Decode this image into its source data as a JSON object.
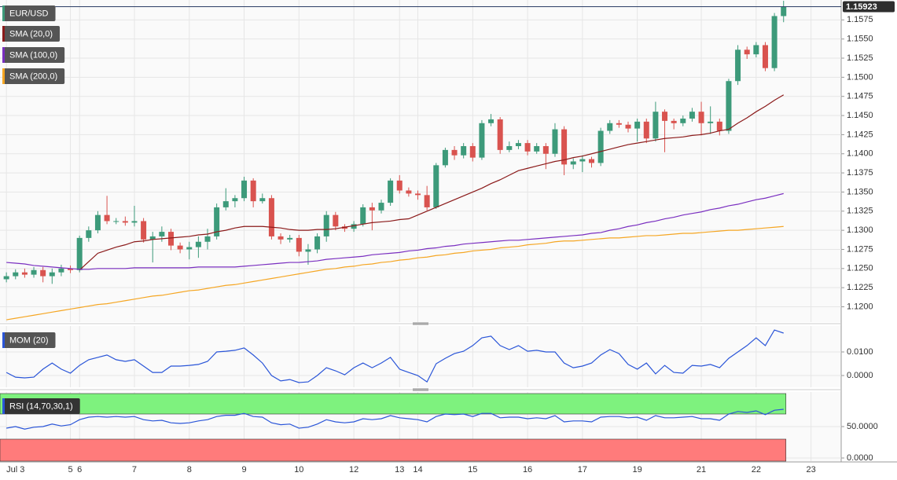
{
  "chart_data": [
    {
      "type": "candlestick",
      "title": "EUR/USD",
      "up_color": "#3d9a7a",
      "down_color": "#d9534f",
      "grid": true,
      "xlim": [
        -0.7,
        91.3
      ],
      "xticks": [
        {
          "value": 0,
          "label": "Jul 3"
        },
        {
          "value": 7,
          "label": "5"
        },
        {
          "value": 8,
          "label": "6"
        },
        {
          "value": 14,
          "label": "7"
        },
        {
          "value": 20,
          "label": "8"
        },
        {
          "value": 26,
          "label": "9"
        },
        {
          "value": 32,
          "label": "10"
        },
        {
          "value": 38,
          "label": "12"
        },
        {
          "value": 43,
          "label": "13"
        },
        {
          "value": 45,
          "label": "14"
        },
        {
          "value": 51,
          "label": "15"
        },
        {
          "value": 57,
          "label": "16"
        },
        {
          "value": 63,
          "label": "17"
        },
        {
          "value": 69,
          "label": "19"
        },
        {
          "value": 76,
          "label": "21"
        },
        {
          "value": 82,
          "label": "22"
        },
        {
          "value": 88,
          "label": "23"
        }
      ],
      "ylim": [
        1.118,
        1.1601
      ],
      "yticks": [
        {
          "value": 1.12,
          "label": "1.1200"
        },
        1.1225,
        {
          "value": 1.125,
          "label": "1.1250"
        },
        1.1275,
        {
          "value": 1.13,
          "label": "1.1300"
        },
        1.1325,
        {
          "value": 1.135,
          "label": "1.1350"
        },
        1.1375,
        {
          "value": 1.14,
          "label": "1.1400"
        },
        1.1425,
        {
          "value": 1.145,
          "label": "1.1450"
        },
        1.1475,
        {
          "value": 1.15,
          "label": "1.1500"
        },
        1.1525,
        {
          "value": 1.155,
          "label": "1.1550"
        },
        1.1575
      ],
      "open": [
        1.1236,
        1.124,
        1.1245,
        1.1242,
        1.1248,
        1.124,
        1.1245,
        1.125,
        1.1248,
        1.129,
        1.13,
        1.132,
        1.1312,
        1.1312,
        1.131,
        1.1312,
        1.1288,
        1.1292,
        1.1298,
        1.128,
        1.1275,
        1.1278,
        1.1285,
        1.1292,
        1.133,
        1.1338,
        1.1342,
        1.1365,
        1.1338,
        1.1342,
        1.1292,
        1.1288,
        1.129,
        1.1272,
        1.1275,
        1.1292,
        1.132,
        1.1305,
        1.1302,
        1.1308,
        1.133,
        1.1326,
        1.1336,
        1.1365,
        1.1352,
        1.1348,
        1.1346,
        1.133,
        1.1385,
        1.1405,
        1.1398,
        1.141,
        1.1395,
        1.144,
        1.1445,
        1.1405,
        1.141,
        1.1414,
        1.1403,
        1.141,
        1.14,
        1.1432,
        1.1386,
        1.139,
        1.1393,
        1.1388,
        1.143,
        1.144,
        1.1438,
        1.1433,
        1.1442,
        1.142,
        1.1455,
        1.1443,
        1.144,
        1.1446,
        1.1455,
        1.144,
        1.1442,
        1.143,
        1.1495,
        1.1536,
        1.153,
        1.1542,
        1.1512,
        1.158
      ],
      "high": [
        1.1245,
        1.1249,
        1.125,
        1.1252,
        1.1252,
        1.125,
        1.1255,
        1.1254,
        1.1293,
        1.1305,
        1.1325,
        1.1345,
        1.1316,
        1.1318,
        1.1332,
        1.1316,
        1.1298,
        1.1305,
        1.1302,
        1.1284,
        1.1285,
        1.1292,
        1.1302,
        1.1335,
        1.1355,
        1.1346,
        1.137,
        1.1368,
        1.1348,
        1.1346,
        1.1296,
        1.1294,
        1.1294,
        1.1282,
        1.1296,
        1.1325,
        1.1324,
        1.1308,
        1.1312,
        1.1334,
        1.1336,
        1.134,
        1.1368,
        1.1372,
        1.1356,
        1.1352,
        1.1358,
        1.1388,
        1.1408,
        1.141,
        1.1414,
        1.1414,
        1.1444,
        1.1452,
        1.1448,
        1.1416,
        1.1418,
        1.1418,
        1.1414,
        1.1414,
        1.144,
        1.1436,
        1.1394,
        1.1398,
        1.1396,
        1.1434,
        1.1444,
        1.1444,
        1.1442,
        1.1446,
        1.1446,
        1.1468,
        1.1458,
        1.1446,
        1.145,
        1.146,
        1.1468,
        1.1462,
        1.1446,
        1.1498,
        1.1542,
        1.154,
        1.1546,
        1.1546,
        1.1584,
        1.16
      ],
      "low": [
        1.1232,
        1.1236,
        1.1238,
        1.1238,
        1.1232,
        1.123,
        1.124,
        1.1244,
        1.1245,
        1.1285,
        1.1296,
        1.1308,
        1.1308,
        1.1306,
        1.1305,
        1.1284,
        1.1258,
        1.1285,
        1.1274,
        1.127,
        1.1262,
        1.1264,
        1.1275,
        1.1288,
        1.1326,
        1.133,
        1.1338,
        1.133,
        1.1335,
        1.1288,
        1.1282,
        1.1284,
        1.1266,
        1.1255,
        1.127,
        1.1285,
        1.13,
        1.1298,
        1.1298,
        1.1305,
        1.13,
        1.1322,
        1.1332,
        1.1348,
        1.1344,
        1.134,
        1.1326,
        1.1328,
        1.1382,
        1.1392,
        1.1394,
        1.139,
        1.1392,
        1.1436,
        1.14,
        1.1402,
        1.1406,
        1.1398,
        1.14,
        1.138,
        1.1396,
        1.1372,
        1.138,
        1.1376,
        1.1382,
        1.1384,
        1.1426,
        1.1434,
        1.1428,
        1.1416,
        1.1414,
        1.1416,
        1.1402,
        1.1432,
        1.1436,
        1.1442,
        1.1424,
        1.1426,
        1.1424,
        1.1426,
        1.149,
        1.1524,
        1.1526,
        1.1508,
        1.1508,
        1.1572
      ],
      "close": [
        1.124,
        1.1245,
        1.1242,
        1.1248,
        1.124,
        1.1245,
        1.125,
        1.1248,
        1.129,
        1.13,
        1.132,
        1.1312,
        1.1312,
        1.131,
        1.1312,
        1.1288,
        1.1292,
        1.1298,
        1.128,
        1.1275,
        1.1278,
        1.1285,
        1.1292,
        1.133,
        1.1338,
        1.1342,
        1.1365,
        1.1338,
        1.1342,
        1.1292,
        1.1288,
        1.129,
        1.1272,
        1.1275,
        1.1292,
        1.132,
        1.1305,
        1.1302,
        1.1308,
        1.133,
        1.1326,
        1.1336,
        1.1365,
        1.1352,
        1.1348,
        1.1346,
        1.133,
        1.1385,
        1.1405,
        1.1398,
        1.141,
        1.1395,
        1.144,
        1.1445,
        1.1405,
        1.141,
        1.1414,
        1.1403,
        1.141,
        1.14,
        1.1432,
        1.1386,
        1.139,
        1.1393,
        1.1388,
        1.143,
        1.144,
        1.1438,
        1.1433,
        1.1442,
        1.142,
        1.1455,
        1.1443,
        1.144,
        1.1446,
        1.1455,
        1.144,
        1.1442,
        1.143,
        1.1495,
        1.1536,
        1.153,
        1.1542,
        1.1512,
        1.158,
        1.15923
      ],
      "series": [
        {
          "name": "SMA (20,0)",
          "color": "#8b1a1a",
          "values": [
            null,
            null,
            null,
            null,
            null,
            null,
            null,
            null,
            1.1248,
            1.1259,
            1.127,
            1.1274,
            1.1278,
            1.1281,
            1.1285,
            1.1286,
            1.1288,
            1.1289,
            1.129,
            1.1291,
            1.1292,
            1.1294,
            1.1295,
            1.1298,
            1.13,
            1.1303,
            1.1305,
            1.1305,
            1.1305,
            1.1304,
            1.1303,
            1.1301,
            1.13,
            1.13,
            1.1301,
            1.1301,
            1.1302,
            1.1304,
            1.1306,
            1.1308,
            1.131,
            1.1311,
            1.1312,
            1.1314,
            1.1315,
            1.132,
            1.1325,
            1.133,
            1.1335,
            1.134,
            1.1345,
            1.135,
            1.1355,
            1.1361,
            1.1366,
            1.1372,
            1.1378,
            1.1381,
            1.1384,
            1.1387,
            1.139,
            1.1392,
            1.1395,
            1.1397,
            1.14,
            1.1403,
            1.1406,
            1.1409,
            1.1412,
            1.1414,
            1.1416,
            1.1418,
            1.142,
            1.1421,
            1.1422,
            1.1424,
            1.1425,
            1.1427,
            1.143,
            1.1432,
            1.144,
            1.1447,
            1.1455,
            1.1462,
            1.147,
            1.1477
          ]
        },
        {
          "name": "SMA (100,0)",
          "color": "#7a2fc0",
          "values": [
            1.1258,
            1.1257,
            1.1256,
            1.1254,
            1.1253,
            1.1252,
            1.1251,
            1.125,
            1.1249,
            1.1249,
            1.125,
            1.125,
            1.125,
            1.125,
            1.1251,
            1.1251,
            1.1251,
            1.1251,
            1.1251,
            1.1251,
            1.1251,
            1.1252,
            1.1252,
            1.1252,
            1.1252,
            1.1252,
            1.1253,
            1.1254,
            1.1255,
            1.1256,
            1.1257,
            1.1258,
            1.1258,
            1.1259,
            1.126,
            1.1262,
            1.1263,
            1.1264,
            1.1265,
            1.1266,
            1.1268,
            1.1269,
            1.127,
            1.1271,
            1.1273,
            1.1274,
            1.1276,
            1.1277,
            1.1279,
            1.128,
            1.1282,
            1.1283,
            1.1284,
            1.1285,
            1.1286,
            1.1287,
            1.1287,
            1.1288,
            1.1289,
            1.129,
            1.1291,
            1.1292,
            1.1293,
            1.1294,
            1.1296,
            1.1297,
            1.13,
            1.1302,
            1.1305,
            1.1307,
            1.131,
            1.1312,
            1.1315,
            1.1317,
            1.132,
            1.1322,
            1.1324,
            1.1327,
            1.1329,
            1.1332,
            1.1334,
            1.1337,
            1.134,
            1.1342,
            1.1345,
            1.1348
          ]
        },
        {
          "name": "SMA (200,0)",
          "color": "#f5a623",
          "values": [
            1.1183,
            1.1185,
            1.1187,
            1.1189,
            1.1191,
            1.1193,
            1.1195,
            1.1197,
            1.1199,
            1.1201,
            1.1203,
            1.1204,
            1.1206,
            1.1208,
            1.121,
            1.1212,
            1.1214,
            1.1215,
            1.1217,
            1.1219,
            1.1221,
            1.1222,
            1.1224,
            1.1226,
            1.1228,
            1.1229,
            1.1231,
            1.1233,
            1.1235,
            1.1237,
            1.1239,
            1.1241,
            1.1243,
            1.1245,
            1.1247,
            1.1249,
            1.125,
            1.1252,
            1.1253,
            1.1255,
            1.1256,
            1.1258,
            1.1259,
            1.1261,
            1.1262,
            1.1264,
            1.1265,
            1.1267,
            1.1268,
            1.127,
            1.1271,
            1.1273,
            1.1274,
            1.1275,
            1.1277,
            1.1278,
            1.1279,
            1.1281,
            1.1282,
            1.1283,
            1.1285,
            1.1286,
            1.1286,
            1.1287,
            1.1288,
            1.1289,
            1.129,
            1.129,
            1.1291,
            1.1292,
            1.1293,
            1.1293,
            1.1294,
            1.1295,
            1.1296,
            1.1296,
            1.1297,
            1.1298,
            1.1299,
            1.13,
            1.13,
            1.1301,
            1.1302,
            1.1303,
            1.1304,
            1.1305
          ]
        }
      ]
    },
    {
      "type": "line",
      "ylim": [
        -0.005,
        0.021
      ],
      "yticks": [
        {
          "value": 0,
          "label": "0.0000"
        },
        {
          "value": 0.01,
          "label": "0.0100"
        }
      ],
      "grid": true,
      "series": [
        {
          "name": "MOM (20)",
          "color": "#2a55d8",
          "values": [
            0.0013,
            -0.0007,
            -0.001,
            -0.0007,
            0.0027,
            0.0053,
            0.0027,
            0.001,
            0.0043,
            0.0067,
            0.0077,
            0.0087,
            0.0067,
            0.006,
            0.0067,
            0.004,
            0.0013,
            0.0013,
            0.004,
            0.004,
            0.0043,
            0.0047,
            0.006,
            0.01,
            0.0103,
            0.0107,
            0.0117,
            0.0087,
            0.0053,
            0.0,
            -0.0023,
            -0.0017,
            -0.003,
            -0.0027,
            0.0,
            0.0033,
            0.002,
            0.0003,
            0.0033,
            0.0053,
            0.0033,
            0.0053,
            0.0077,
            0.0027,
            0.0013,
            0.0,
            -0.0027,
            0.005,
            0.0073,
            0.0093,
            0.0103,
            0.0127,
            0.016,
            0.0167,
            0.0127,
            0.011,
            0.0127,
            0.0103,
            0.0107,
            0.01,
            0.01,
            0.0053,
            0.0033,
            0.004,
            0.0053,
            0.0087,
            0.011,
            0.0093,
            0.0047,
            0.0027,
            0.0053,
            0.0007,
            0.0043,
            0.0013,
            0.001,
            0.0043,
            0.004,
            0.0047,
            0.0033,
            0.0073,
            0.01,
            0.0127,
            0.016,
            0.0127,
            0.0193,
            0.018
          ]
        }
      ]
    },
    {
      "type": "line",
      "ylim": [
        -5,
        105
      ],
      "yticks": [
        {
          "value": 0,
          "label": "0.0000"
        },
        {
          "value": 50,
          "label": "50.0000"
        }
      ],
      "grid": true,
      "overbought": 70,
      "oversold": 30,
      "overbought_color": "#7ef27e",
      "oversold_color": "#ff7b7b",
      "series": [
        {
          "name": "RSI (14,70,30,1)",
          "color": "#2a55d8",
          "values": [
            47.5,
            50,
            46,
            49,
            50,
            54,
            51,
            53,
            61,
            65,
            66,
            65,
            66,
            65,
            66,
            61,
            59,
            60,
            56,
            55,
            56,
            59,
            61,
            66,
            68,
            68,
            71,
            66,
            65,
            56,
            53,
            54,
            47.5,
            49,
            54,
            61,
            57.5,
            56,
            57.5,
            62.5,
            61,
            62.5,
            67.5,
            64,
            62.5,
            61,
            57.5,
            66,
            70,
            69,
            70,
            66,
            71,
            71,
            64,
            65,
            65,
            62.5,
            64,
            62.5,
            67.5,
            57.5,
            59,
            59,
            57.5,
            65,
            66,
            66,
            64,
            65,
            60,
            67.5,
            64,
            64,
            65,
            66,
            62.5,
            62.5,
            60,
            70,
            74,
            72.5,
            75,
            69,
            76,
            77.5
          ]
        }
      ]
    }
  ]
}
